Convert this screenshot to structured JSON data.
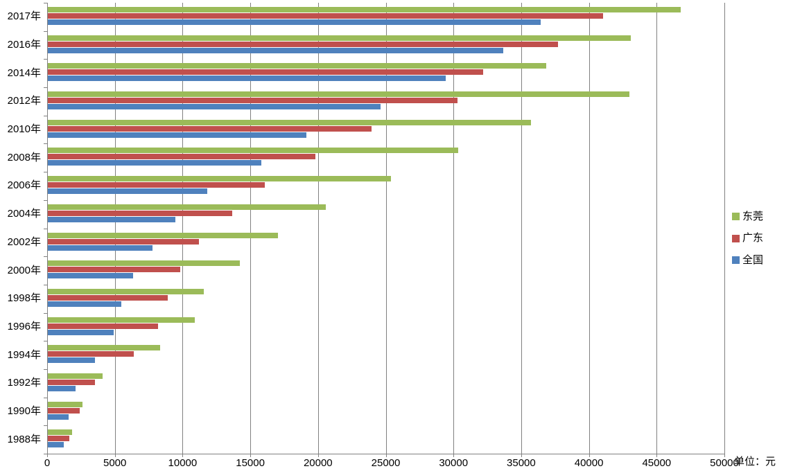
{
  "chart_data": {
    "type": "bar",
    "orientation": "horizontal",
    "unit_label": "单位：元",
    "categories": [
      "2017年",
      "2016年",
      "2014年",
      "2012年",
      "2010年",
      "2008年",
      "2006年",
      "2004年",
      "2002年",
      "2000年",
      "1998年",
      "1996年",
      "1994年",
      "1992年",
      "1990年",
      "1988年"
    ],
    "series": [
      {
        "name": "东莞",
        "color": "#9BBB59",
        "values": [
          46739,
          43056,
          36800,
          42944,
          35690,
          30275,
          25320,
          20526,
          16990,
          14180,
          11530,
          10850,
          8290,
          4040,
          2575,
          1810
        ]
      },
      {
        "name": "广东",
        "color": "#C0504D",
        "values": [
          40975,
          37684,
          32148,
          30227,
          23898,
          19733,
          16016,
          13628,
          11137,
          9762,
          8840,
          8158,
          6367,
          3476,
          2370,
          1590
        ]
      },
      {
        "name": "全国",
        "color": "#4F81BD",
        "values": [
          36396,
          33616,
          29400,
          24565,
          19109,
          15781,
          11759,
          9422,
          7703,
          6280,
          5425,
          4839,
          3496,
          2027,
          1510,
          1181
        ]
      }
    ],
    "xlim": [
      0,
      50000
    ],
    "x_ticks": [
      0,
      5000,
      10000,
      15000,
      20000,
      25000,
      30000,
      35000,
      40000,
      45000,
      50000
    ],
    "x_tick_labels": [
      "0",
      "5000",
      "10000",
      "15000",
      "20000",
      "25000",
      "30000",
      "35000",
      "40000",
      "45000",
      "50000"
    ],
    "legend_position": "right",
    "grid": true
  },
  "colors": {
    "background": "#FFFFFF",
    "axis": "#808080",
    "gridline": "#808080",
    "text": "#000000"
  }
}
